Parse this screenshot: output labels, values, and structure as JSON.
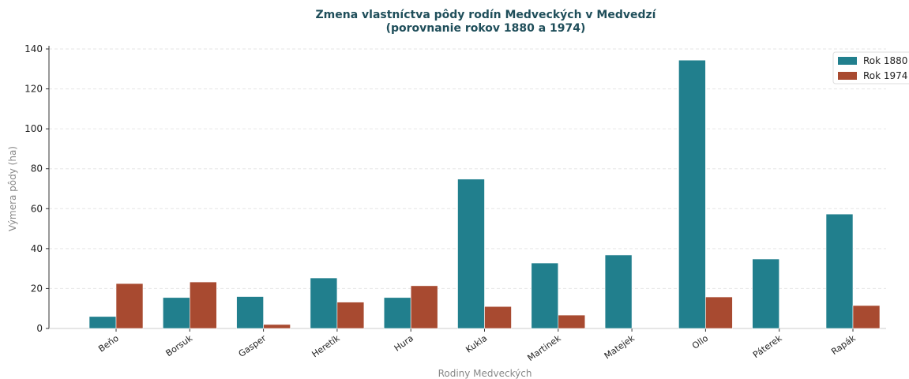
{
  "chart_data": {
    "type": "bar",
    "title": [
      "Zmena vlastníctva pôdy rodín Medveckých v Medvedzí",
      "(porovnanie rokov 1880 a 1974)"
    ],
    "x_label": "Rodiny Medveckých",
    "y_label": "Výmera pôdy (ha)",
    "categories": [
      "Beňo",
      "Borsuk",
      "Gasper",
      "Heretík",
      "Hura",
      "Kukla",
      "Martinek",
      "Matejek",
      "Ollo",
      "Páterek",
      "Rapák"
    ],
    "series": [
      {
        "name": "Rok 1880",
        "color": "#217f8d",
        "values": [
          6,
          15.5,
          16,
          25.3,
          15.5,
          74.8,
          32.8,
          36.8,
          134.4,
          34.8,
          57.3
        ]
      },
      {
        "name": "Rok 1974",
        "color": "#a84a30",
        "values": [
          22.5,
          23.3,
          2,
          13.2,
          21.4,
          11,
          6.7,
          0,
          15.8,
          0,
          11.5
        ]
      }
    ],
    "ylim": [
      0,
      140
    ],
    "yticks": [
      0,
      20,
      40,
      60,
      80,
      100,
      120,
      140
    ],
    "grid": true,
    "legend": "upper right"
  }
}
